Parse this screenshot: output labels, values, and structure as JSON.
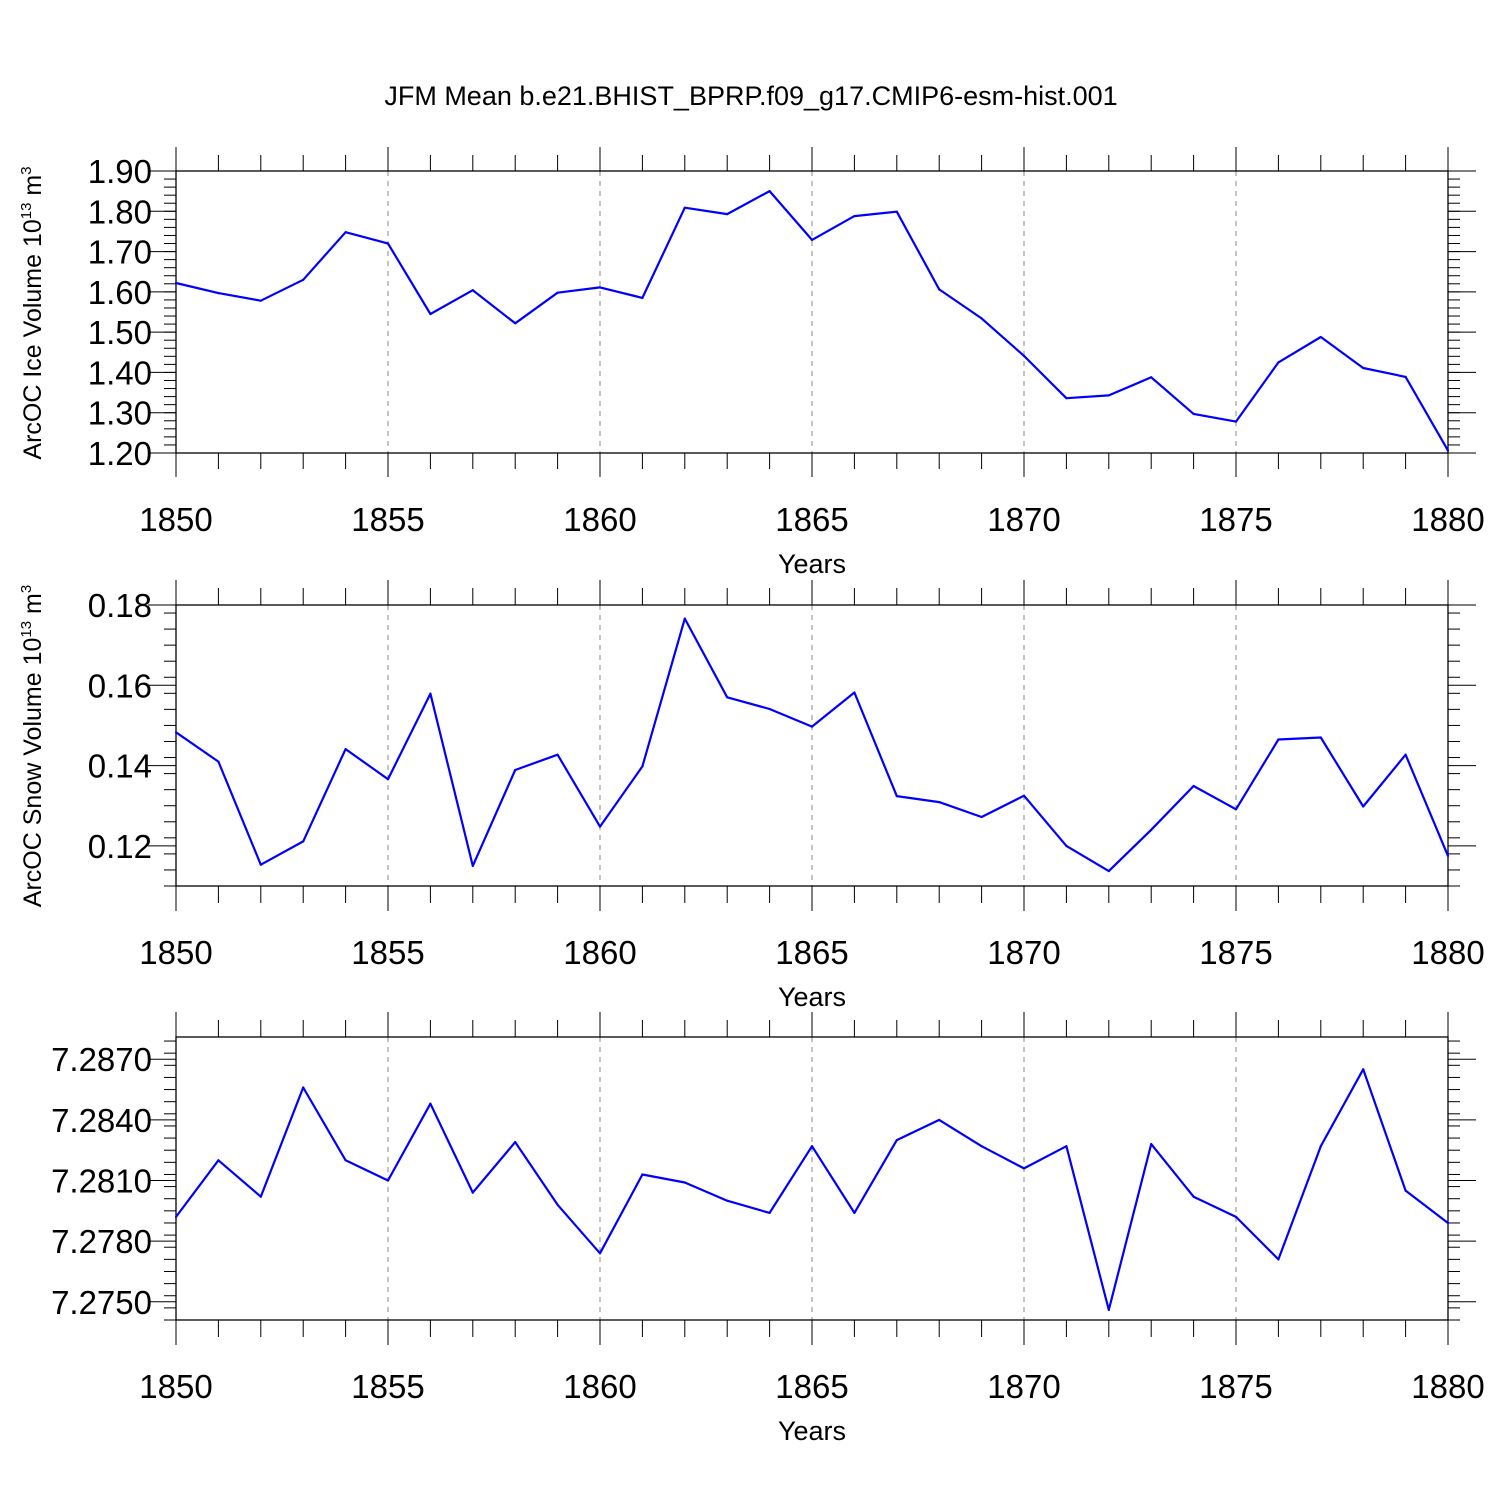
{
  "title": "JFM Mean b.e21.BHIST_BPRP.f09_g17.CMIP6-esm-hist.001",
  "colors": {
    "line": "#0000ff",
    "frame": "#000000",
    "grid": "#888888"
  },
  "chart_data": [
    {
      "type": "line",
      "ylabel_main": "ArcOC Ice Volume 10",
      "ylabel_exp": "13",
      "ylabel_unit": "m",
      "ylabel_unit_exp": "3",
      "xlabel": "Years",
      "x": [
        1850,
        1851,
        1852,
        1853,
        1854,
        1855,
        1856,
        1857,
        1858,
        1859,
        1860,
        1861,
        1862,
        1863,
        1864,
        1865,
        1866,
        1867,
        1868,
        1869,
        1870,
        1871,
        1872,
        1873,
        1874,
        1875,
        1876,
        1877,
        1878,
        1879,
        1880
      ],
      "values": [
        1.622,
        1.597,
        1.578,
        1.63,
        1.748,
        1.72,
        1.545,
        1.604,
        1.522,
        1.598,
        1.611,
        1.585,
        1.809,
        1.793,
        1.85,
        1.729,
        1.788,
        1.799,
        1.606,
        1.534,
        1.441,
        1.336,
        1.343,
        1.388,
        1.297,
        1.278,
        1.425,
        1.488,
        1.411,
        1.389,
        1.206
      ],
      "xlim": [
        1850,
        1880
      ],
      "ylim": [
        1.2,
        1.9
      ],
      "yticks": [
        "1.20",
        "1.30",
        "1.40",
        "1.50",
        "1.60",
        "1.70",
        "1.80",
        "1.90"
      ],
      "xticks": [
        "1850",
        "1855",
        "1860",
        "1865",
        "1870",
        "1875",
        "1880"
      ]
    },
    {
      "type": "line",
      "ylabel_main": "ArcOC Snow Volume 10",
      "ylabel_exp": "13",
      "ylabel_unit": "m",
      "ylabel_unit_exp": "3",
      "xlabel": "Years",
      "x": [
        1850,
        1851,
        1852,
        1853,
        1854,
        1855,
        1856,
        1857,
        1858,
        1859,
        1860,
        1861,
        1862,
        1863,
        1864,
        1865,
        1866,
        1867,
        1868,
        1869,
        1870,
        1871,
        1872,
        1873,
        1874,
        1875,
        1876,
        1877,
        1878,
        1879,
        1880
      ],
      "values": [
        0.1483,
        0.141,
        0.1153,
        0.1211,
        0.1441,
        0.1366,
        0.1579,
        0.115,
        0.1389,
        0.1427,
        0.1248,
        0.1398,
        0.1766,
        0.157,
        0.1541,
        0.1497,
        0.1582,
        0.1324,
        0.1309,
        0.1272,
        0.1325,
        0.12,
        0.1137,
        0.124,
        0.1349,
        0.1291,
        0.1465,
        0.147,
        0.1298,
        0.1427,
        0.1175
      ],
      "xlim": [
        1850,
        1880
      ],
      "ylim": [
        0.11,
        0.18
      ],
      "yticks": [
        "0.12",
        "0.14",
        "0.16",
        "0.18"
      ],
      "xticks": [
        "1850",
        "1855",
        "1860",
        "1865",
        "1870",
        "1875",
        "1880"
      ]
    },
    {
      "type": "line",
      "xlabel": "Years",
      "x": [
        1850,
        1851,
        1852,
        1853,
        1854,
        1855,
        1856,
        1857,
        1858,
        1859,
        1860,
        1861,
        1862,
        1863,
        1864,
        1865,
        1866,
        1867,
        1868,
        1869,
        1870,
        1871,
        1872,
        1873,
        1874,
        1875,
        1876,
        1877,
        1878,
        1879,
        1880
      ],
      "values": [
        7.2792,
        7.282,
        7.2802,
        7.2856,
        7.282,
        7.281,
        7.2848,
        7.2804,
        7.2829,
        7.2798,
        7.2774,
        7.2813,
        7.2809,
        7.28,
        7.2794,
        7.2827,
        7.2794,
        7.283,
        7.284,
        7.2827,
        7.2816,
        7.2827,
        7.2746,
        7.2828,
        7.2802,
        7.2792,
        7.2771,
        7.2827,
        7.2865,
        7.2805,
        7.2789
      ],
      "xlim": [
        1850,
        1880
      ],
      "ylim": [
        7.2741,
        7.2881
      ],
      "yticks": [
        "7.2750",
        "7.2780",
        "7.2810",
        "7.2840",
        "7.2870"
      ],
      "xticks": [
        "1850",
        "1855",
        "1860",
        "1865",
        "1870",
        "1875",
        "1880"
      ]
    }
  ]
}
